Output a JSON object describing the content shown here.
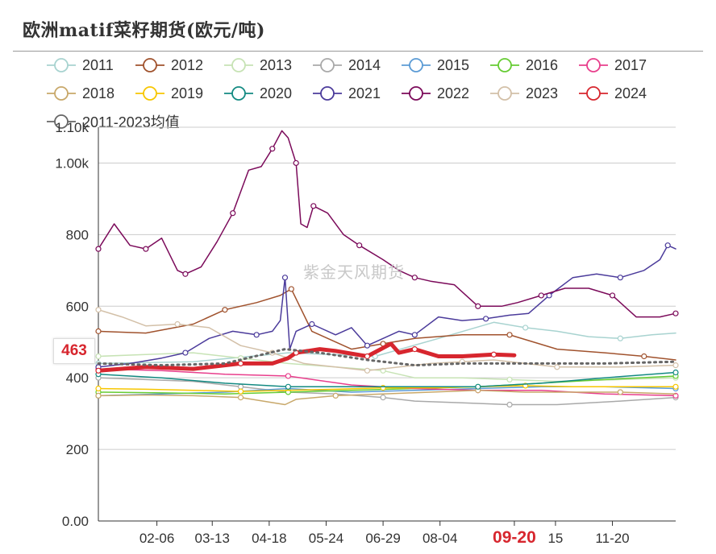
{
  "chart_data": {
    "type": "line",
    "title": "欧洲matif菜籽期货(欧元/吨)",
    "xlabel": "",
    "ylabel": "",
    "ylim": [
      0,
      1100
    ],
    "y_ticks": [
      "0.00",
      "200",
      "400",
      "600",
      "800",
      "1.00k",
      "1.10k"
    ],
    "y_tick_values": [
      0,
      200,
      400,
      600,
      800,
      1000,
      1100
    ],
    "x_ticks": [
      "02-06",
      "03-13",
      "04-18",
      "05-24",
      "06-29",
      "08-04",
      "09-20",
      "15",
      "11-20"
    ],
    "x_tick_days": [
      37,
      72,
      108,
      144,
      180,
      216,
      263,
      289,
      325
    ],
    "x_highlight": "09-20",
    "xlim_days": [
      0,
      365
    ],
    "grid": "horizontal",
    "legend_position": "top",
    "watermark": "紫金天风期货",
    "last_value_label": "463",
    "series": [
      {
        "name": "2011",
        "color": "#a8d3d0",
        "style": "solid",
        "width": 1.5,
        "days": [
          0,
          60,
          120,
          175,
          215,
          250,
          270,
          290,
          310,
          330,
          350,
          365
        ],
        "values": [
          440,
          445,
          470,
          460,
          510,
          555,
          540,
          530,
          515,
          510,
          520,
          525
        ]
      },
      {
        "name": "2012",
        "color": "#a0522d",
        "style": "solid",
        "width": 1.5,
        "days": [
          0,
          30,
          60,
          80,
          100,
          115,
          122,
          135,
          160,
          180,
          200,
          230,
          260,
          290,
          320,
          345,
          365
        ],
        "values": [
          530,
          525,
          550,
          590,
          610,
          630,
          648,
          530,
          480,
          495,
          510,
          520,
          520,
          480,
          470,
          460,
          450
        ]
      },
      {
        "name": "2013",
        "color": "#c7e3b5",
        "style": "solid",
        "width": 1.5,
        "days": [
          0,
          30,
          60,
          90,
          120,
          150,
          180,
          200,
          230,
          260,
          290,
          330,
          365
        ],
        "values": [
          460,
          465,
          470,
          455,
          440,
          430,
          420,
          400,
          400,
          395,
          390,
          395,
          400
        ]
      },
      {
        "name": "2014",
        "color": "#a9a9a9",
        "style": "solid",
        "width": 1.5,
        "days": [
          0,
          30,
          60,
          90,
          120,
          150,
          180,
          200,
          230,
          260,
          290,
          330,
          365
        ],
        "values": [
          400,
          395,
          390,
          375,
          360,
          355,
          345,
          335,
          330,
          325,
          325,
          335,
          345
        ]
      },
      {
        "name": "2015",
        "color": "#5b9bd5",
        "style": "solid",
        "width": 1.5,
        "days": [
          0,
          40,
          80,
          120,
          160,
          200,
          240,
          280,
          320,
          365
        ],
        "values": [
          350,
          355,
          360,
          370,
          360,
          365,
          370,
          375,
          375,
          370
        ]
      },
      {
        "name": "2016",
        "color": "#66cc33",
        "style": "solid",
        "width": 1.5,
        "days": [
          0,
          40,
          80,
          120,
          160,
          200,
          240,
          280,
          320,
          365
        ],
        "values": [
          360,
          358,
          355,
          360,
          365,
          370,
          375,
          385,
          395,
          405
        ]
      },
      {
        "name": "2017",
        "color": "#e83e8c",
        "style": "solid",
        "width": 1.5,
        "days": [
          0,
          40,
          80,
          120,
          160,
          200,
          240,
          280,
          320,
          365
        ],
        "values": [
          425,
          420,
          410,
          405,
          380,
          370,
          365,
          365,
          355,
          350
        ]
      },
      {
        "name": "2018",
        "color": "#c8a86a",
        "style": "solid",
        "width": 1.5,
        "days": [
          0,
          30,
          60,
          90,
          118,
          125,
          150,
          180,
          210,
          240,
          270,
          300,
          330,
          365
        ],
        "values": [
          350,
          352,
          350,
          345,
          325,
          340,
          350,
          355,
          360,
          365,
          360,
          360,
          360,
          355
        ]
      },
      {
        "name": "2019",
        "color": "#f7c600",
        "style": "solid",
        "width": 1.5,
        "days": [
          0,
          30,
          60,
          90,
          120,
          150,
          180,
          210,
          240,
          270,
          300,
          330,
          365
        ],
        "values": [
          370,
          368,
          365,
          362,
          365,
          368,
          372,
          372,
          375,
          378,
          375,
          375,
          375
        ]
      },
      {
        "name": "2020",
        "color": "#138a82",
        "style": "solid",
        "width": 1.5,
        "days": [
          0,
          40,
          80,
          120,
          160,
          200,
          240,
          280,
          320,
          365
        ],
        "values": [
          410,
          400,
          385,
          375,
          375,
          375,
          375,
          385,
          400,
          415
        ]
      },
      {
        "name": "2021",
        "color": "#4b3b9b",
        "style": "solid",
        "width": 1.5,
        "days": [
          0,
          20,
          40,
          55,
          70,
          85,
          100,
          110,
          115,
          118,
          121,
          125,
          135,
          150,
          160,
          170,
          180,
          190,
          200,
          215,
          230,
          245,
          260,
          272,
          285,
          300,
          315,
          330,
          345,
          355,
          360,
          365
        ],
        "values": [
          430,
          440,
          455,
          470,
          510,
          530,
          520,
          530,
          560,
          680,
          480,
          530,
          550,
          520,
          540,
          490,
          510,
          530,
          520,
          570,
          560,
          565,
          575,
          580,
          630,
          680,
          690,
          680,
          700,
          730,
          770,
          760
        ]
      },
      {
        "name": "2022",
        "color": "#7b0a5a",
        "style": "solid",
        "width": 1.5,
        "days": [
          0,
          10,
          20,
          30,
          40,
          50,
          55,
          65,
          75,
          85,
          95,
          103,
          110,
          116,
          120,
          125,
          128,
          132,
          136,
          145,
          155,
          165,
          180,
          190,
          200,
          210,
          225,
          240,
          255,
          265,
          280,
          295,
          310,
          325,
          340,
          355,
          365
        ],
        "values": [
          760,
          830,
          770,
          760,
          790,
          700,
          690,
          710,
          780,
          860,
          980,
          990,
          1040,
          1090,
          1070,
          1000,
          830,
          820,
          880,
          860,
          800,
          770,
          730,
          700,
          680,
          670,
          660,
          600,
          600,
          610,
          630,
          650,
          650,
          630,
          570,
          570,
          580
        ]
      },
      {
        "name": "2023",
        "color": "#d3c0a8",
        "style": "solid",
        "width": 1.5,
        "days": [
          0,
          15,
          30,
          50,
          70,
          90,
          110,
          130,
          150,
          170,
          190,
          210,
          230,
          250,
          270,
          290,
          310,
          330,
          365
        ],
        "values": [
          590,
          570,
          545,
          550,
          540,
          490,
          470,
          440,
          430,
          420,
          430,
          440,
          445,
          450,
          440,
          430,
          430,
          430,
          435
        ]
      },
      {
        "name": "2024",
        "color": "#d7262e",
        "style": "solid",
        "width": 5,
        "days": [
          0,
          30,
          60,
          90,
          110,
          120,
          125,
          140,
          150,
          170,
          185,
          190,
          200,
          215,
          230,
          250,
          263
        ],
        "values": [
          420,
          430,
          425,
          440,
          440,
          455,
          470,
          480,
          475,
          460,
          495,
          470,
          480,
          460,
          460,
          465,
          463
        ]
      },
      {
        "name": "2011-2023均值",
        "color": "#666666",
        "style": "dotted",
        "width": 3,
        "days": [
          0,
          40,
          80,
          118,
          140,
          170,
          200,
          230,
          260,
          290,
          320,
          365
        ],
        "values": [
          440,
          435,
          440,
          480,
          470,
          450,
          435,
          440,
          440,
          440,
          440,
          445
        ]
      }
    ]
  }
}
